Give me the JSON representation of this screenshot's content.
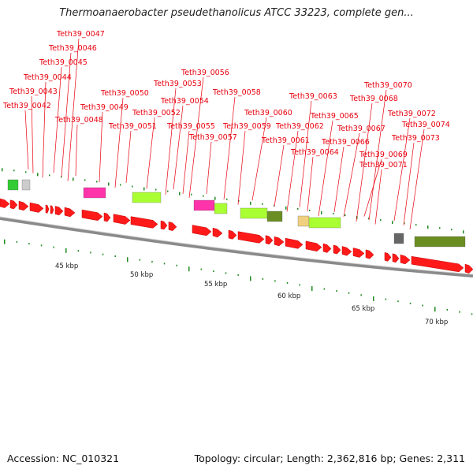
{
  "title": "Thermoanaerobacter pseudethanolicus ATCC 33223, complete gen...",
  "footer": {
    "accession": "Accession: NC_010321",
    "summary": "Topology: circular; Length: 2,362,816 bp; Genes: 2,311"
  },
  "colors": {
    "label": "#e8000d",
    "cds_forward": "#ff1a1a",
    "backbone": "#888888",
    "tick": "#1f8a1f"
  },
  "gene_labels": [
    "Teth39_0042",
    "Teth39_0043",
    "Teth39_0044",
    "Teth39_0045",
    "Teth39_0046",
    "Teth39_0047",
    "Teth39_0048",
    "Teth39_0049",
    "Teth39_0050",
    "Teth39_0051",
    "Teth39_0052",
    "Teth39_0053",
    "Teth39_0054",
    "Teth39_0055",
    "Teth39_0056",
    "Teth39_0057",
    "Teth39_0058",
    "Teth39_0059",
    "Teth39_0060",
    "Teth39_0061",
    "Teth39_0062",
    "Teth39_0063",
    "Teth39_0064",
    "Teth39_0065",
    "Teth39_0066",
    "Teth39_0067",
    "Teth39_0068",
    "Teth39_0069",
    "Teth39_0070",
    "Teth39_0071",
    "Teth39_0072",
    "Teth39_0073",
    "Teth39_0074"
  ],
  "scale_labels": [
    "45 kbp",
    "50 kbp",
    "55 kbp",
    "60 kbp",
    "65 kbp",
    "70 kbp"
  ]
}
